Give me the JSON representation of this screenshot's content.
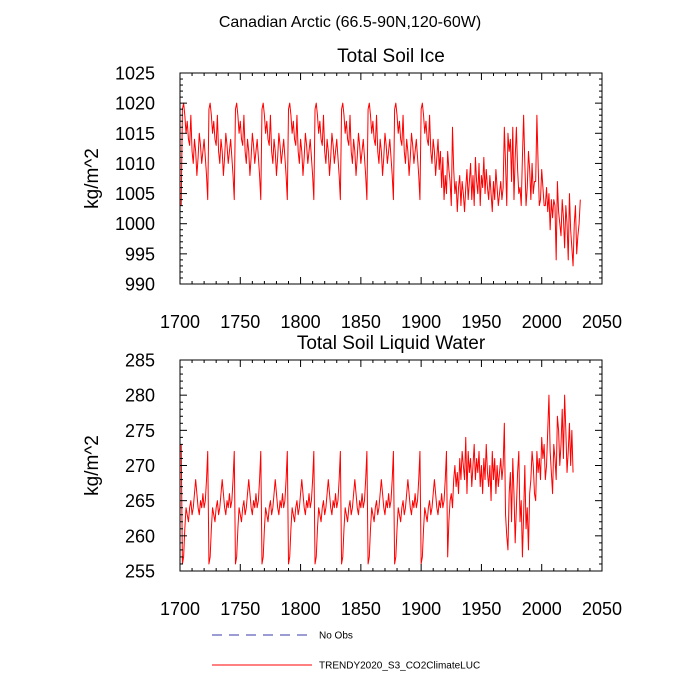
{
  "figure": {
    "title": "Canadian Arctic (66.5-90N,120-60W)"
  },
  "legend": {
    "entries": [
      {
        "label": "No Obs",
        "color": "#3a3aa8",
        "style": "dashed"
      },
      {
        "label": "TRENDY2020_S3_CO2ClimateLUC",
        "color": "#ff0000",
        "style": "solid"
      }
    ]
  },
  "chart_data": [
    {
      "type": "line",
      "title": "Total Soil Ice",
      "xlabel": "",
      "ylabel": "kg/m^2",
      "xlim": [
        1700,
        2050
      ],
      "ylim": [
        990,
        1025
      ],
      "xticks": [
        1700,
        1750,
        1800,
        1850,
        1900,
        1950,
        2000,
        2050
      ],
      "yticks": [
        990,
        995,
        1000,
        1005,
        1010,
        1015,
        1020,
        1025
      ],
      "series": [
        {
          "name": "TRENDY2020_S3_CO2ClimateLUC",
          "color": "#ff0000",
          "x_start": 1701,
          "x_step": 1,
          "values": [
            1003,
            1019,
            1020,
            1018,
            1015,
            1017,
            1014,
            1013,
            1018,
            1012,
            1010,
            1014,
            1012,
            1008,
            1011,
            1015,
            1013,
            1010,
            1012,
            1014,
            1011,
            1008,
            1004,
            1019,
            1020,
            1018,
            1015,
            1017,
            1014,
            1013,
            1018,
            1012,
            1010,
            1014,
            1012,
            1008,
            1011,
            1015,
            1013,
            1010,
            1012,
            1014,
            1011,
            1008,
            1004,
            1019,
            1020,
            1018,
            1015,
            1017,
            1014,
            1013,
            1018,
            1012,
            1010,
            1014,
            1012,
            1008,
            1011,
            1015,
            1013,
            1010,
            1012,
            1014,
            1011,
            1008,
            1004,
            1019,
            1020,
            1018,
            1015,
            1017,
            1014,
            1013,
            1018,
            1012,
            1010,
            1014,
            1012,
            1008,
            1011,
            1015,
            1013,
            1010,
            1012,
            1014,
            1011,
            1008,
            1004,
            1019,
            1020,
            1018,
            1015,
            1017,
            1014,
            1013,
            1018,
            1012,
            1010,
            1014,
            1012,
            1008,
            1011,
            1015,
            1013,
            1010,
            1012,
            1014,
            1011,
            1008,
            1004,
            1019,
            1020,
            1018,
            1015,
            1017,
            1014,
            1013,
            1018,
            1012,
            1010,
            1014,
            1012,
            1008,
            1011,
            1015,
            1013,
            1010,
            1012,
            1014,
            1011,
            1008,
            1004,
            1019,
            1020,
            1018,
            1015,
            1017,
            1014,
            1013,
            1018,
            1012,
            1010,
            1014,
            1012,
            1008,
            1011,
            1015,
            1013,
            1010,
            1012,
            1014,
            1011,
            1008,
            1004,
            1019,
            1020,
            1018,
            1015,
            1017,
            1014,
            1013,
            1018,
            1012,
            1010,
            1014,
            1012,
            1008,
            1011,
            1015,
            1013,
            1010,
            1012,
            1014,
            1011,
            1008,
            1004,
            1019,
            1020,
            1018,
            1015,
            1017,
            1014,
            1013,
            1018,
            1012,
            1010,
            1014,
            1012,
            1008,
            1011,
            1015,
            1013,
            1010,
            1012,
            1014,
            1011,
            1008,
            1004,
            1019,
            1020,
            1018,
            1015,
            1017,
            1014,
            1013,
            1018,
            1012,
            1010,
            1014,
            1012,
            1008,
            1011,
            1014,
            1009,
            1012,
            1006,
            1011,
            1004,
            1008,
            1005,
            1012,
            1009,
            1007,
            1003,
            1016,
            1009,
            1005,
            1007,
            1002,
            1006,
            1008,
            1003,
            1007,
            1005,
            1002,
            1006,
            1009,
            1004,
            1007,
            1010,
            1004,
            1008,
            1003,
            1011,
            1007,
            1005,
            1010,
            1003,
            1008,
            1006,
            1011,
            1005,
            1009,
            1006,
            1004,
            1008,
            1005,
            1002,
            1007,
            1004,
            1009,
            1006,
            1003,
            1005,
            1007,
            1004,
            1006,
            1016,
            1010,
            1003,
            1015,
            1012,
            1014,
            1007,
            1016,
            1004,
            1011,
            1016,
            1009,
            1005,
            1006,
            1003,
            1011,
            1018,
            1010,
            1003,
            1006,
            1012,
            1009,
            1004,
            1010,
            1005,
            1007,
            1007,
            1018,
            1010,
            1003,
            1004,
            1009,
            1006,
            1003,
            1003,
            1006,
            1002,
            1005,
            999,
            1004,
            1001,
            1004,
            1003,
            994,
            1007,
            1002,
            1000,
            998,
            1004,
            1001,
            996,
            1003,
            1000,
            994,
            1005,
            999,
            996,
            993,
            1000,
            1003,
            995,
            998,
            1000,
            1004
          ]
        }
      ]
    },
    {
      "type": "line",
      "title": "Total Soil Liquid Water",
      "xlabel": "",
      "ylabel": "kg/m^2",
      "xlim": [
        1700,
        2050
      ],
      "ylim": [
        255,
        285
      ],
      "xticks": [
        1700,
        1750,
        1800,
        1850,
        1900,
        1950,
        2000,
        2050
      ],
      "yticks": [
        255,
        260,
        265,
        270,
        275,
        280,
        285
      ],
      "series": [
        {
          "name": "TRENDY2020_S3_CO2ClimateLUC",
          "color": "#ff0000",
          "x_start": 1701,
          "x_step": 1,
          "values": [
            273,
            256,
            257,
            261,
            264,
            263,
            262,
            264,
            265,
            263,
            264,
            266,
            268,
            266,
            264,
            263,
            265,
            264,
            266,
            264,
            265,
            268,
            272,
            256,
            257,
            261,
            264,
            263,
            262,
            264,
            265,
            263,
            264,
            266,
            268,
            266,
            264,
            263,
            265,
            264,
            266,
            264,
            265,
            268,
            272,
            256,
            257,
            261,
            264,
            263,
            262,
            264,
            265,
            263,
            264,
            266,
            268,
            266,
            264,
            263,
            265,
            264,
            266,
            264,
            265,
            268,
            272,
            256,
            257,
            261,
            264,
            263,
            262,
            264,
            265,
            263,
            264,
            266,
            268,
            266,
            264,
            263,
            265,
            264,
            266,
            264,
            265,
            268,
            272,
            256,
            257,
            261,
            264,
            263,
            262,
            264,
            265,
            263,
            264,
            266,
            268,
            266,
            264,
            263,
            265,
            264,
            266,
            264,
            265,
            268,
            272,
            256,
            257,
            261,
            264,
            263,
            262,
            264,
            265,
            263,
            264,
            266,
            268,
            266,
            264,
            263,
            265,
            264,
            266,
            264,
            265,
            268,
            272,
            256,
            257,
            261,
            264,
            263,
            262,
            264,
            265,
            263,
            264,
            266,
            268,
            266,
            264,
            263,
            265,
            264,
            266,
            264,
            265,
            268,
            272,
            256,
            257,
            261,
            264,
            263,
            262,
            264,
            265,
            263,
            264,
            266,
            268,
            266,
            264,
            263,
            265,
            264,
            266,
            264,
            265,
            268,
            272,
            256,
            257,
            261,
            264,
            263,
            262,
            264,
            265,
            263,
            264,
            266,
            268,
            266,
            264,
            263,
            265,
            264,
            266,
            264,
            265,
            268,
            272,
            256,
            257,
            261,
            264,
            263,
            262,
            264,
            265,
            263,
            264,
            266,
            268,
            266,
            264,
            263,
            265,
            264,
            266,
            264,
            265,
            268,
            272,
            257,
            262,
            265,
            266,
            264,
            268,
            270,
            267,
            269,
            266,
            271,
            268,
            272,
            270,
            268,
            274,
            266,
            272,
            269,
            271,
            267,
            270,
            273,
            268,
            271,
            269,
            272,
            267,
            270,
            266,
            271,
            268,
            273,
            269,
            267,
            270,
            265,
            272,
            268,
            271,
            266,
            270,
            267,
            269,
            271,
            268,
            270,
            276,
            263,
            260,
            258,
            266,
            269,
            262,
            271,
            266,
            259,
            264,
            269,
            272,
            262,
            265,
            257,
            263,
            270,
            261,
            264,
            258,
            266,
            268,
            272,
            270,
            266,
            265,
            272,
            269,
            271,
            268,
            274,
            271,
            273,
            268,
            270,
            275,
            280,
            272,
            269,
            266,
            273,
            271,
            268,
            277,
            275,
            270,
            273,
            278,
            271,
            280,
            275,
            269,
            272,
            276,
            270,
            275,
            269
          ]
        }
      ]
    }
  ]
}
